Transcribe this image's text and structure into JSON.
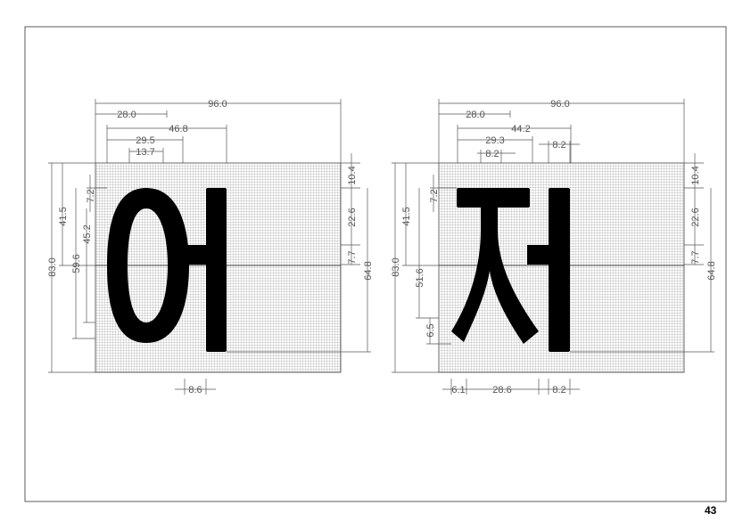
{
  "page_number": "43",
  "glyphs": [
    {
      "character": "어",
      "dimensions": {
        "width_total": "96.0",
        "offset_a": "28.0",
        "offset_b": "46.8",
        "offset_c": "29.5",
        "offset_d": "13.7",
        "height_total": "83.0",
        "left_a": "41.5",
        "left_b": "7.2",
        "left_c": "59.6",
        "left_d": "45.2",
        "right_a": "10.4",
        "right_b": "22.6",
        "right_c": "7.7",
        "right_d": "64.8",
        "bottom_a": "8.6"
      }
    },
    {
      "character": "저",
      "dimensions": {
        "width_total": "96.0",
        "offset_a": "28.0",
        "offset_b": "44.2",
        "offset_c": "29.3",
        "offset_d": "8.2",
        "offset_e": "8.2",
        "height_total": "83.0",
        "left_a": "41.5",
        "left_b": "7.2",
        "left_c": "51.6",
        "left_d": "6.5",
        "right_a": "10.4",
        "right_b": "22.6",
        "right_c": "7.7",
        "right_d": "64.8",
        "bottom_a": "6.1",
        "bottom_b": "28.6",
        "bottom_c": "8.2"
      }
    }
  ]
}
